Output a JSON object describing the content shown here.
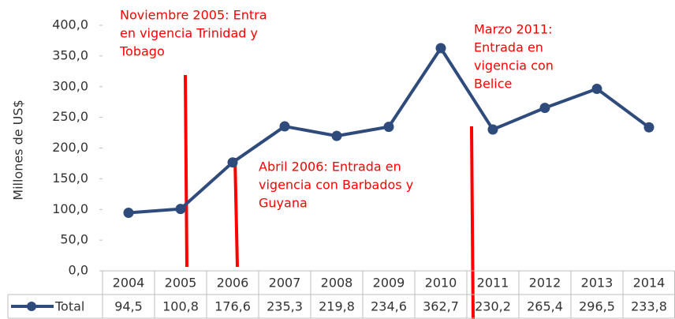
{
  "chart_data": {
    "type": "line",
    "y_label": "Millones de US$",
    "categories": [
      "2004",
      "2005",
      "2006",
      "2007",
      "2008",
      "2009",
      "2010",
      "2011",
      "2012",
      "2013",
      "2014"
    ],
    "series": [
      {
        "name": "Total",
        "color": "#2f4b7c",
        "values": [
          94.5,
          100.8,
          176.6,
          235.3,
          219.8,
          234.6,
          362.7,
          230.2,
          265.4,
          296.5,
          233.8
        ],
        "value_labels": [
          "94,5",
          "100,8",
          "176,6",
          "235,3",
          "219,8",
          "234,6",
          "362,7",
          "230,2",
          "265,4",
          "296,5",
          "233,8"
        ]
      }
    ],
    "ylim": [
      0,
      400
    ],
    "yticks": [
      {
        "value": 0,
        "label": "0,0"
      },
      {
        "value": 50,
        "label": "50,0"
      },
      {
        "value": 100,
        "label": "100,0"
      },
      {
        "value": 150,
        "label": "150,0"
      },
      {
        "value": 200,
        "label": "200,0"
      },
      {
        "value": 250,
        "label": "250,0"
      },
      {
        "value": 300,
        "label": "300,0"
      },
      {
        "value": 350,
        "label": "350,0"
      },
      {
        "value": 400,
        "label": "400,0"
      }
    ],
    "grid": false,
    "annotations": [
      {
        "lines": [
          "Noviembre 2005: Entra",
          "en vigencia Trinidad y",
          "Tobago"
        ]
      },
      {
        "lines": [
          "Abril 2006: Entrada en",
          "vigencia con Barbados y",
          "Guyana"
        ]
      },
      {
        "lines": [
          "Marzo 2011:",
          "Entrada en",
          "vigencia con",
          "Belice"
        ]
      }
    ]
  }
}
